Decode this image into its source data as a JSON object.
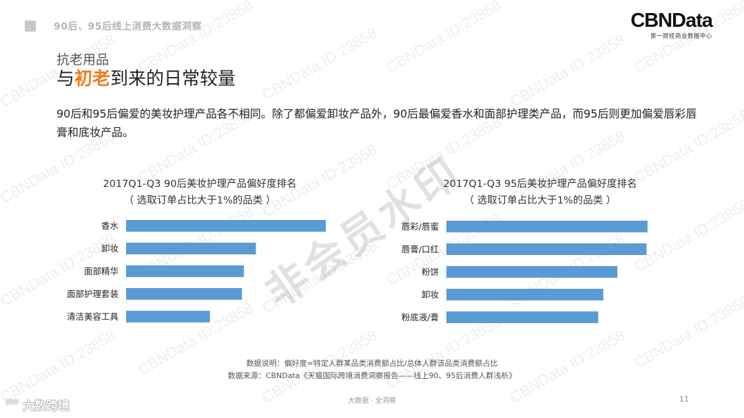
{
  "header": {
    "title": "90后、95后线上消费大数据洞察"
  },
  "logo": {
    "main": "CBNData",
    "sub": "第一财经商业数据中心"
  },
  "section": {
    "label": "抗老用品"
  },
  "headline": {
    "prefix": "与",
    "accent": "初老",
    "suffix": "到来的日常较量"
  },
  "summary": "90后和95后偏爱的美妆护理产品各不相同。除了都偏爱卸妆产品外，90后最偏爱香水和面部护理类产品，而95后则更加偏爱唇彩唇膏和底妆产品。",
  "bar_color": "#5b9bd5",
  "chart_data": [
    {
      "type": "bar",
      "orientation": "horizontal",
      "title": "2017Q1-Q3 90后美妆护理产品偏好度排名",
      "subtitle": "（ 选取订单占比大于1%的品类 ）",
      "categories": [
        "香水",
        "卸妆",
        "面部精华",
        "面部护理套装",
        "清洁美容工具"
      ],
      "values": [
        100,
        65,
        59,
        58,
        42
      ],
      "xlim": [
        0,
        100
      ],
      "axis_labels": false,
      "grid": false
    },
    {
      "type": "bar",
      "orientation": "horizontal",
      "title": "2017Q1-Q3 95后美妆护理产品偏好度排名",
      "subtitle": "（ 选取订单占比大于1%的品类 ）",
      "categories": [
        "唇彩/唇蜜",
        "唇膏/口红",
        "粉饼",
        "卸妆",
        "粉底液/膏"
      ],
      "values": [
        100,
        99.5,
        85,
        78,
        75.5
      ],
      "xlim": [
        0,
        100
      ],
      "axis_labels": false,
      "grid": false
    }
  ],
  "notes": {
    "line1": "数据说明：偏好度=特定人群某品类消费额占比/总体人群该品类消费额占比",
    "line2": "数据来源：CBNData《天猫国际跨境消费洞察报告——线上90、95后消费人群浅析》"
  },
  "footer": {
    "center": "大数据 · 全洞察",
    "page_number": "11"
  },
  "bottom_brand": {
    "text": "大数跨境"
  },
  "watermark": {
    "text": "CBNData ID:23858",
    "stamp": "非会员水印"
  }
}
